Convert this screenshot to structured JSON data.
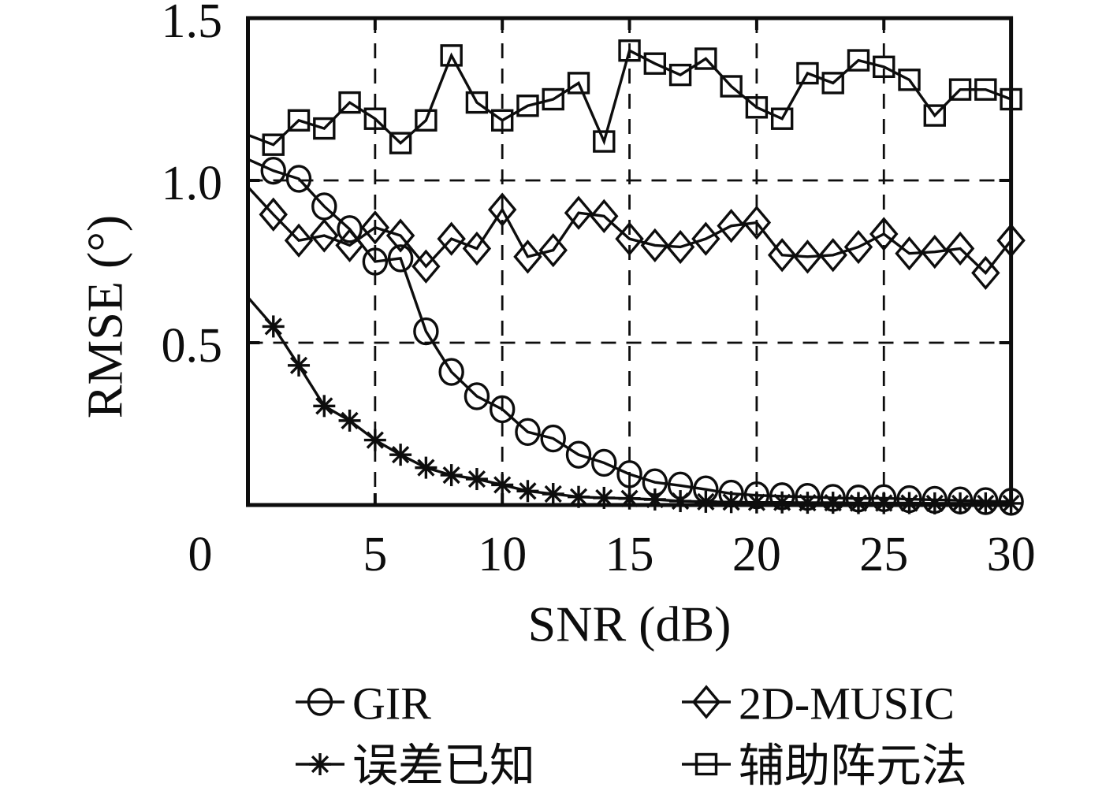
{
  "figure": {
    "background": "#ffffff",
    "ink_color": "#0d0d0d"
  },
  "chart_data": {
    "type": "line",
    "title": "",
    "xlabel": "SNR (dB)",
    "ylabel": "RMSE (°)",
    "xlim": [
      0,
      30
    ],
    "ylim": [
      0,
      1.5
    ],
    "grid": "dashed vertical at x=5,10,15,20,25; dashed horizontal at y=0.5,1.0",
    "legend_position": "below plot, two columns",
    "origin_label": "0",
    "x_ticks": [
      0,
      5,
      10,
      15,
      20,
      25,
      30
    ],
    "x_tick_labels": [
      "0",
      "5",
      "10",
      "15",
      "20",
      "25",
      "30"
    ],
    "y_ticks": [
      0.5,
      1.0,
      1.5
    ],
    "y_tick_labels": [
      "0.5",
      "1.0",
      "1.5"
    ],
    "x": [
      0,
      1,
      2,
      3,
      4,
      5,
      6,
      7,
      8,
      9,
      10,
      11,
      12,
      13,
      14,
      15,
      16,
      17,
      18,
      19,
      20,
      21,
      22,
      23,
      24,
      25,
      26,
      27,
      28,
      29,
      30
    ],
    "series": [
      {
        "name": "GIR",
        "slug": "gir",
        "marker": "circle",
        "values": [
          1.065,
          1.03,
          1.005,
          0.92,
          0.85,
          0.75,
          0.76,
          0.535,
          0.41,
          0.335,
          0.295,
          0.225,
          0.205,
          0.155,
          0.13,
          0.095,
          0.07,
          0.06,
          0.048,
          0.035,
          0.03,
          0.027,
          0.025,
          0.022,
          0.02,
          0.021,
          0.018,
          0.016,
          0.014,
          0.012,
          0.01
        ]
      },
      {
        "name": "2D-MUSIC",
        "slug": "2d-music",
        "marker": "diamond",
        "values": [
          0.98,
          0.895,
          0.815,
          0.83,
          0.8,
          0.855,
          0.83,
          0.735,
          0.82,
          0.79,
          0.91,
          0.765,
          0.785,
          0.9,
          0.89,
          0.82,
          0.8,
          0.795,
          0.82,
          0.86,
          0.87,
          0.77,
          0.765,
          0.77,
          0.795,
          0.835,
          0.775,
          0.78,
          0.79,
          0.715,
          0.815
        ]
      },
      {
        "name": "误差已知",
        "slug": "error-known",
        "marker": "asterisk",
        "values": [
          0.64,
          0.55,
          0.43,
          0.305,
          0.26,
          0.2,
          0.155,
          0.115,
          0.092,
          0.08,
          0.062,
          0.043,
          0.034,
          0.025,
          0.022,
          0.02,
          0.017,
          0.012,
          0.01,
          0.009,
          0.008,
          0.008,
          0.007,
          0.007,
          0.006,
          0.006,
          0.006,
          0.005,
          0.005,
          0.005,
          0.005
        ]
      },
      {
        "name": "辅助阵元法",
        "slug": "auxiliary-array",
        "marker": "square",
        "values": [
          1.14,
          1.11,
          1.185,
          1.16,
          1.24,
          1.19,
          1.115,
          1.185,
          1.385,
          1.24,
          1.185,
          1.23,
          1.25,
          1.3,
          1.12,
          1.4,
          1.36,
          1.325,
          1.375,
          1.29,
          1.225,
          1.19,
          1.33,
          1.3,
          1.37,
          1.35,
          1.31,
          1.2,
          1.28,
          1.28,
          1.25
        ]
      }
    ],
    "legend_order": [
      0,
      1,
      2,
      3
    ]
  }
}
